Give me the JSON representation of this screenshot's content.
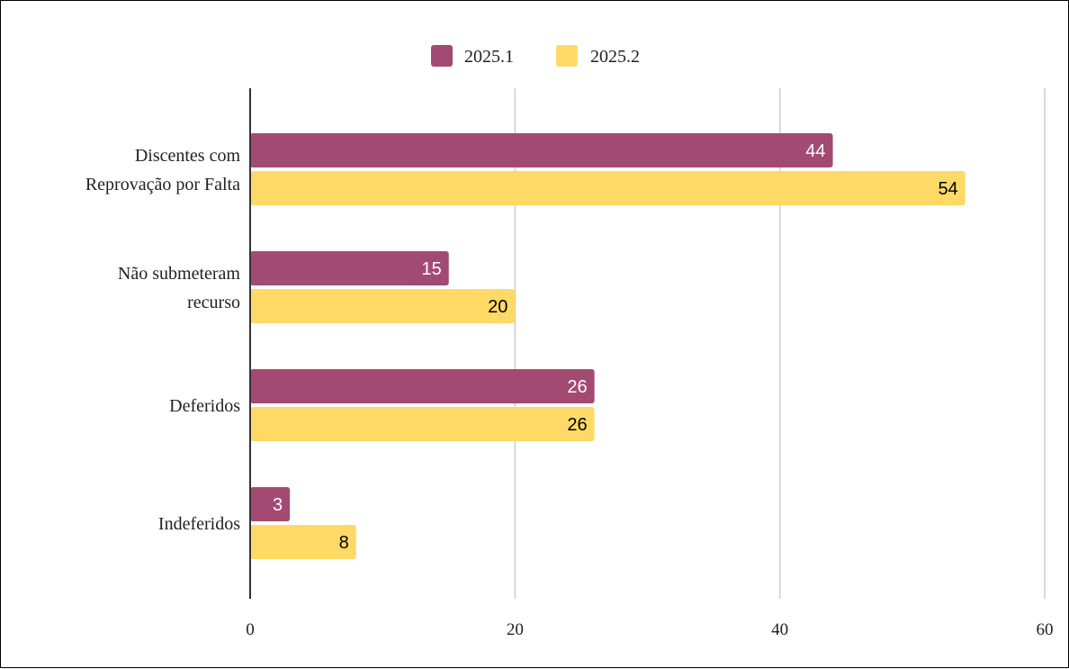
{
  "chart_data": {
    "type": "bar",
    "orientation": "horizontal",
    "categories": [
      [
        "Discentes com",
        "Reprovação por Falta"
      ],
      [
        "Não submeteram",
        "recurso"
      ],
      [
        "Deferidos"
      ],
      [
        "Indeferidos"
      ]
    ],
    "series": [
      {
        "name": "2025.1",
        "color": "#a34a73",
        "label_color": "#ffffff",
        "values": [
          44,
          15,
          26,
          3
        ]
      },
      {
        "name": "2025.2",
        "color": "#ffd966",
        "label_color": "#000000",
        "values": [
          54,
          20,
          26,
          8
        ]
      }
    ],
    "xlim": [
      0,
      60
    ],
    "xticks": [
      0,
      20,
      40,
      60
    ],
    "grid": true,
    "legend_position": "top-center",
    "data_labels": true,
    "title": "",
    "xlabel": "",
    "ylabel": ""
  }
}
